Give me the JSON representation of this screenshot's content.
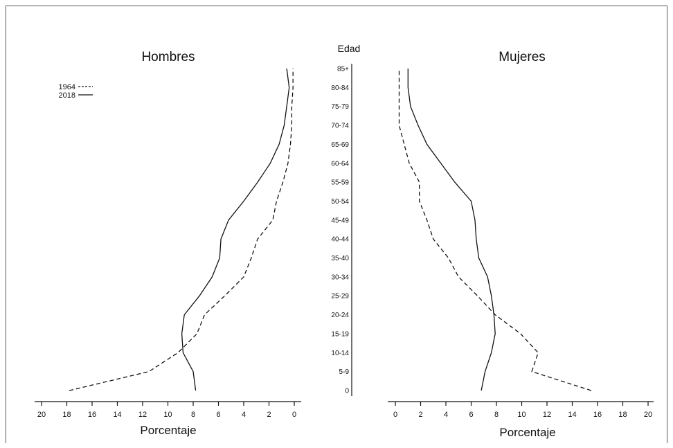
{
  "chart_data": [
    {
      "type": "line",
      "title": "Hombres",
      "xlabel": "Porcentaje",
      "x_reversed": true,
      "xlim": [
        0,
        20
      ],
      "xticks": [
        "20",
        "18",
        "16",
        "14",
        "12",
        "10",
        "8",
        "6",
        "4",
        "2",
        "0"
      ],
      "legend": [
        {
          "label": "1964",
          "style": "dashed"
        },
        {
          "label": "2018",
          "style": "solid"
        }
      ],
      "legend_position": "top-left",
      "series": [
        {
          "name": "1964",
          "style": "dashed",
          "values": [
            17.8,
            11.5,
            9.2,
            7.7,
            7.1,
            5.5,
            4.0,
            3.4,
            2.9,
            1.7,
            1.4,
            0.9,
            0.5,
            0.3,
            0.2,
            0.2,
            0.1,
            0.1
          ]
        },
        {
          "name": "2018",
          "style": "solid",
          "values": [
            7.8,
            8.0,
            8.8,
            8.9,
            8.7,
            7.5,
            6.5,
            5.9,
            5.8,
            5.2,
            4.0,
            2.9,
            1.9,
            1.2,
            0.8,
            0.6,
            0.4,
            0.6
          ]
        }
      ]
    },
    {
      "type": "line",
      "title": "Mujeres",
      "xlabel": "Porcentaje",
      "xlim": [
        0,
        20
      ],
      "xticks": [
        "0",
        "2",
        "4",
        "6",
        "8",
        "10",
        "12",
        "14",
        "16",
        "18",
        "20"
      ],
      "series": [
        {
          "name": "1964",
          "style": "dashed",
          "values": [
            15.5,
            10.8,
            11.3,
            9.9,
            7.9,
            6.5,
            5.0,
            4.2,
            3.0,
            2.5,
            1.9,
            1.9,
            1.1,
            0.7,
            0.3,
            0.3,
            0.3,
            0.3
          ]
        },
        {
          "name": "2018",
          "style": "solid",
          "values": [
            6.8,
            7.1,
            7.6,
            7.9,
            7.8,
            7.6,
            7.3,
            6.6,
            6.4,
            6.3,
            6.0,
            4.7,
            3.6,
            2.5,
            1.8,
            1.2,
            1.0,
            1.0
          ]
        }
      ]
    }
  ],
  "age_axis": {
    "title": "Edad",
    "labels": [
      "0",
      "5-9",
      "10-14",
      "15-19",
      "20-24",
      "25-29",
      "30-34",
      "35-40",
      "40-44",
      "45-49",
      "50-54",
      "55-59",
      "60-64",
      "65-69",
      "70-74",
      "75-79",
      "80-84",
      "85+"
    ]
  }
}
